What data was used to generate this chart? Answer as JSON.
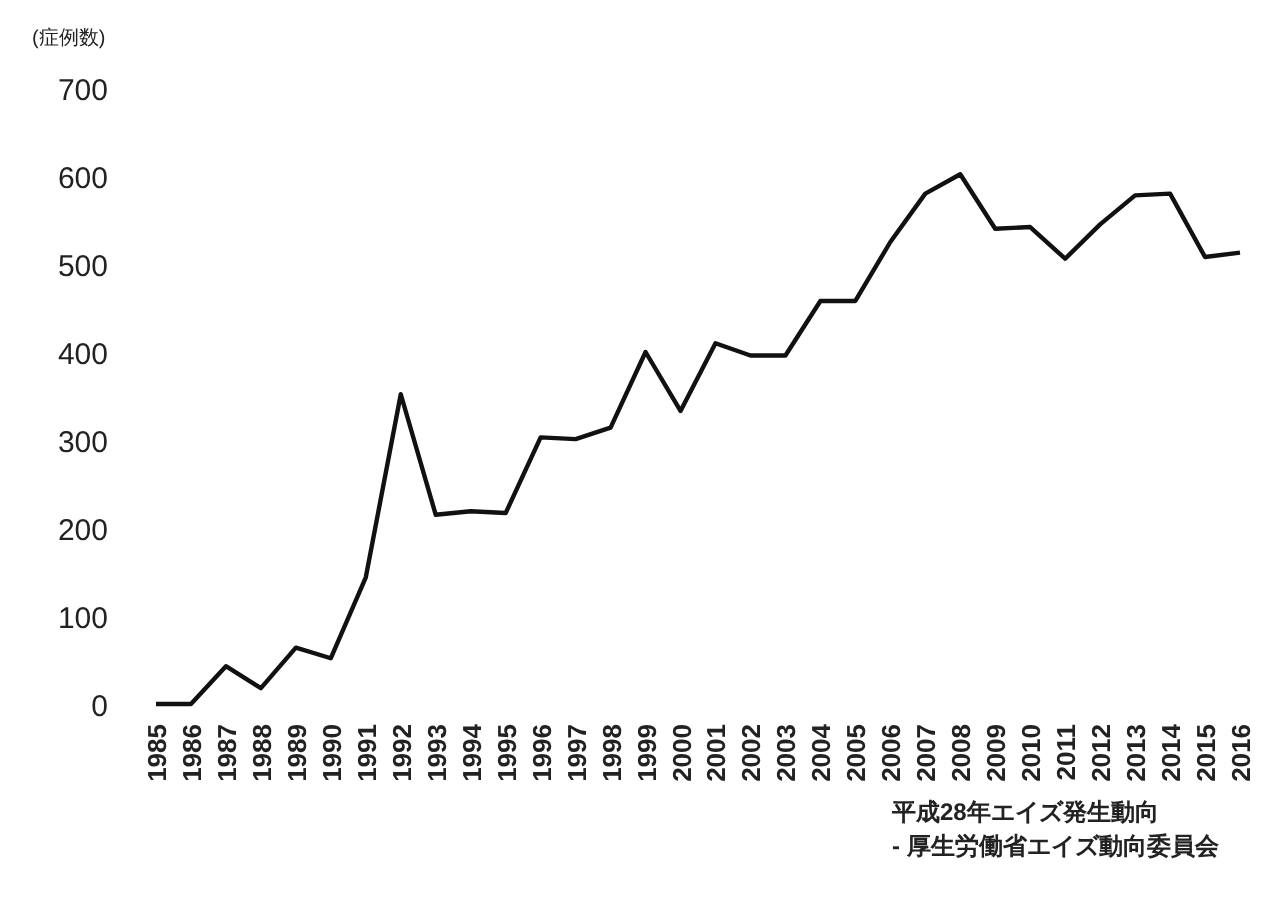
{
  "chart_data": {
    "type": "line",
    "ylabel": "(症例数)",
    "categories": [
      "1985",
      "1986",
      "1987",
      "1988",
      "1989",
      "1990",
      "1991",
      "1992",
      "1993",
      "1994",
      "1995",
      "1996",
      "1997",
      "1998",
      "1999",
      "2000",
      "2001",
      "2002",
      "2003",
      "2004",
      "2005",
      "2006",
      "2007",
      "2008",
      "2009",
      "2010",
      "2011",
      "2012",
      "2013",
      "2014",
      "2015",
      "2016"
    ],
    "series": [
      {
        "color": "#111111",
        "values": [
          0,
          0,
          43,
          18,
          64,
          52,
          144,
          352,
          215,
          219,
          217,
          303,
          301,
          314,
          400,
          333,
          410,
          396,
          396,
          458,
          458,
          525,
          580,
          602,
          540,
          542,
          506,
          545,
          578,
          580,
          508,
          513
        ]
      }
    ],
    "ylim": [
      0,
      700
    ],
    "yticks": [
      0,
      100,
      200,
      300,
      400,
      500,
      600,
      700
    ],
    "grid": false,
    "marker": "none",
    "line_style": "solid",
    "annotations": [
      "平成28年エイズ発生動向\n- 厚生労働省エイズ動向委員会"
    ]
  }
}
